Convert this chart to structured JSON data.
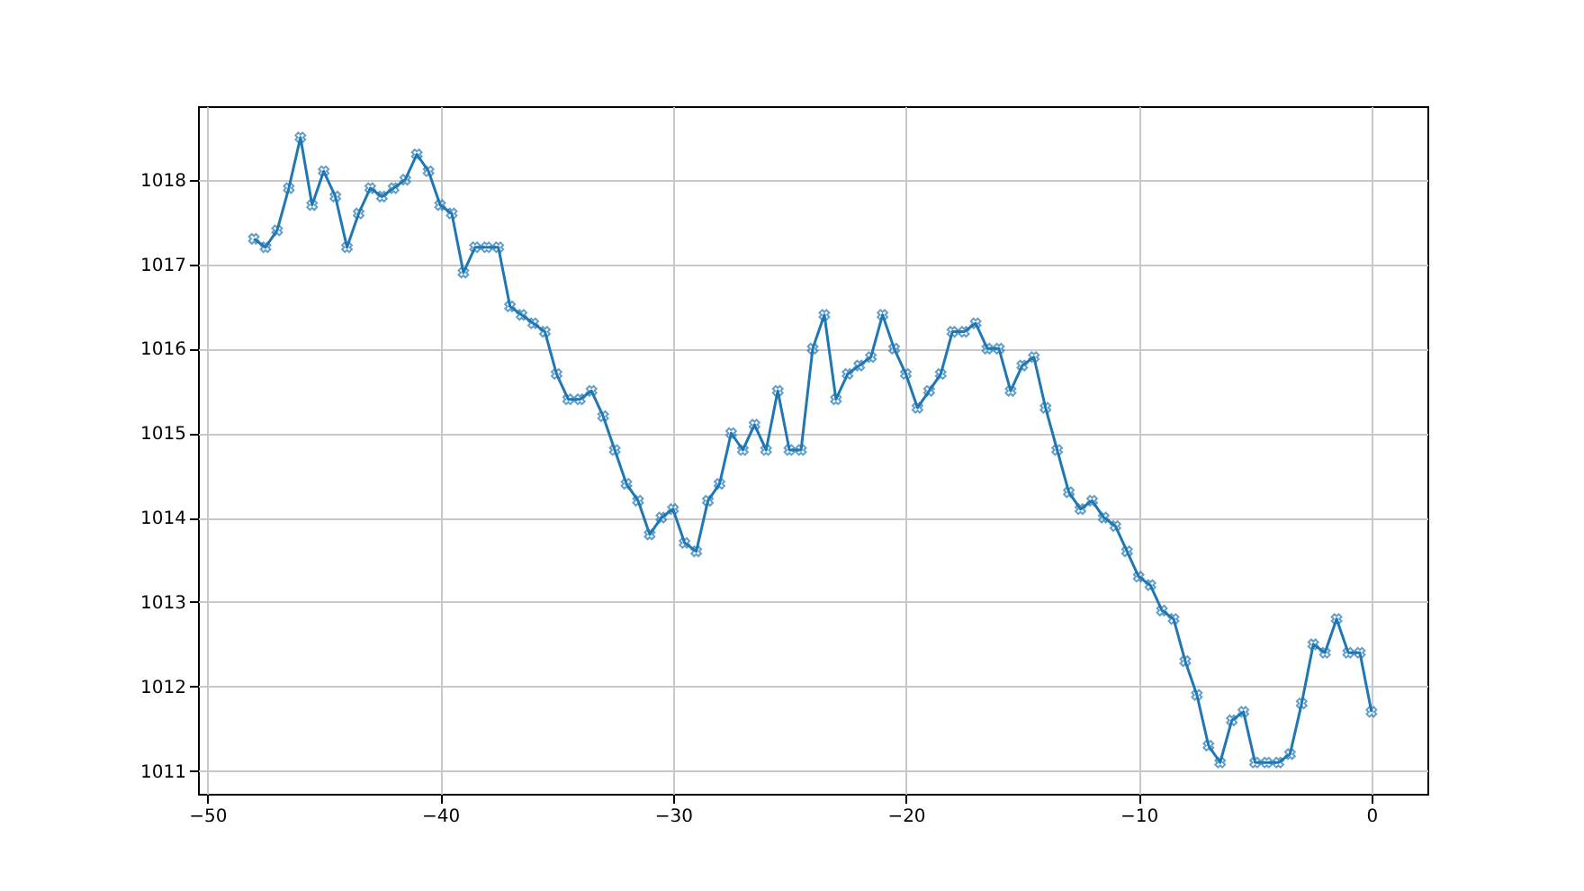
{
  "chart_data": {
    "type": "line",
    "marker": "cross",
    "line_style": "solid",
    "grid": true,
    "x": [
      -48,
      -47.5,
      -47,
      -46.5,
      -46,
      -45.5,
      -45,
      -44.5,
      -44,
      -43.5,
      -43,
      -42.5,
      -42,
      -41.5,
      -41,
      -40.5,
      -40,
      -39.5,
      -39,
      -38.5,
      -38,
      -37.5,
      -37,
      -36.5,
      -36,
      -35.5,
      -35,
      -34.5,
      -34,
      -33.5,
      -33,
      -32.5,
      -32,
      -31.5,
      -31,
      -30.5,
      -30,
      -29.5,
      -29,
      -28.5,
      -28,
      -27.5,
      -27,
      -26.5,
      -26,
      -25.5,
      -25,
      -24.5,
      -24,
      -23.5,
      -23,
      -22.5,
      -22,
      -21.5,
      -21,
      -20.5,
      -20,
      -19.5,
      -19,
      -18.5,
      -18,
      -17.5,
      -17,
      -16.5,
      -16,
      -15.5,
      -15,
      -14.5,
      -14,
      -13.5,
      -13,
      -12.5,
      -12,
      -11.5,
      -11,
      -10.5,
      -10,
      -9.5,
      -9,
      -8.5,
      -8,
      -7.5,
      -7,
      -6.5,
      -6,
      -5.5,
      -5,
      -4.5,
      -4,
      -3.5,
      -3,
      -2.5,
      -2,
      -1.5,
      -1,
      -0.5,
      0
    ],
    "series": [
      {
        "color": "#1f77b4",
        "values": [
          1017.3,
          1017.2,
          1017.4,
          1017.9,
          1018.5,
          1017.7,
          1018.1,
          1017.8,
          1017.2,
          1017.6,
          1017.9,
          1017.8,
          1017.9,
          1018.0,
          1018.3,
          1018.1,
          1017.7,
          1017.6,
          1016.9,
          1017.2,
          1017.2,
          1017.2,
          1016.5,
          1016.4,
          1016.3,
          1016.2,
          1015.7,
          1015.4,
          1015.4,
          1015.5,
          1015.2,
          1014.8,
          1014.4,
          1014.2,
          1013.8,
          1014.0,
          1014.1,
          1013.7,
          1013.6,
          1014.2,
          1014.4,
          1015.0,
          1014.8,
          1015.1,
          1014.8,
          1015.5,
          1014.8,
          1014.8,
          1016.0,
          1016.4,
          1015.4,
          1015.7,
          1015.8,
          1015.9,
          1016.4,
          1016.0,
          1015.7,
          1015.3,
          1015.5,
          1015.7,
          1016.2,
          1016.2,
          1016.3,
          1016.0,
          1016.0,
          1015.5,
          1015.8,
          1015.9,
          1015.3,
          1014.8,
          1014.3,
          1014.1,
          1014.2,
          1014.0,
          1013.9,
          1013.6,
          1013.3,
          1013.2,
          1012.9,
          1012.8,
          1012.3,
          1011.9,
          1011.3,
          1011.1,
          1011.6,
          1011.7,
          1011.1,
          1011.1,
          1011.1,
          1011.2,
          1011.8,
          1012.5,
          1012.4,
          1012.8,
          1012.4,
          1012.4,
          1011.7
        ]
      }
    ],
    "xlim": [
      -50.4,
      2.4
    ],
    "xticks": [
      {
        "value": -50,
        "label": "−50"
      },
      {
        "value": -40,
        "label": "−40"
      },
      {
        "value": -30,
        "label": "−30"
      },
      {
        "value": -20,
        "label": "−20"
      },
      {
        "value": -10,
        "label": "−10"
      },
      0
    ],
    "ylim": [
      1010.73,
      1018.87
    ],
    "yticks": [
      1011,
      1012,
      1013,
      1014,
      1015,
      1016,
      1017,
      1018
    ]
  }
}
